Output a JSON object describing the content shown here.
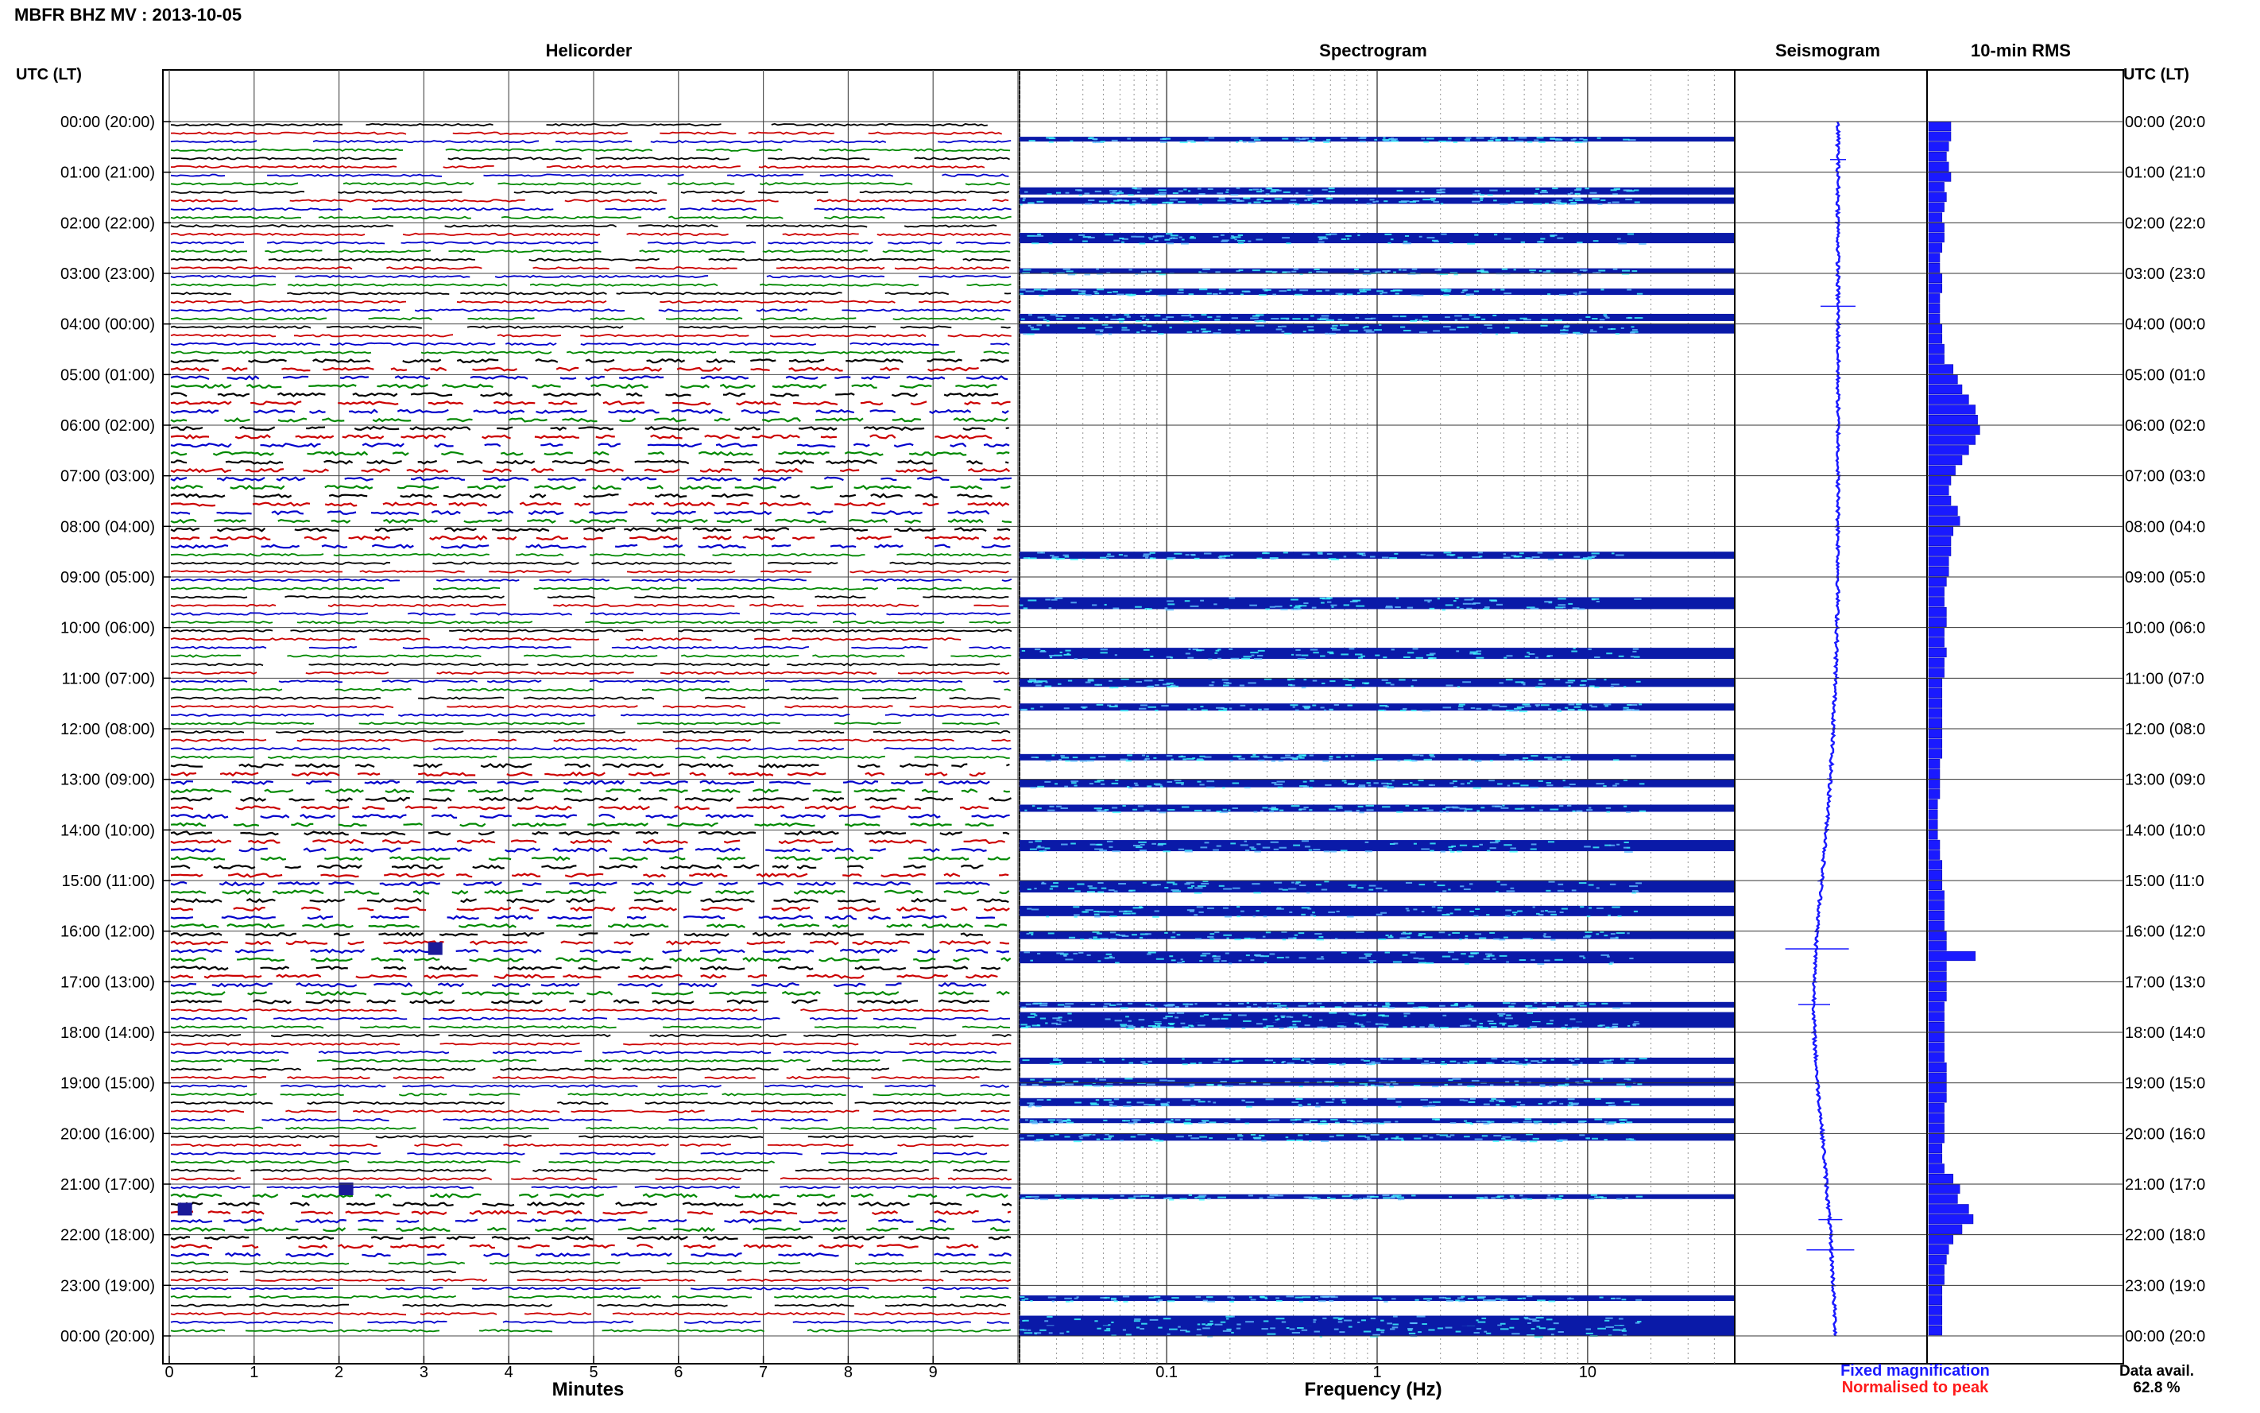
{
  "header": {
    "title": "MBFR BHZ MV : 2013-10-05",
    "time_label_left": "UTC (LT)",
    "time_label_right": "UTC (LT)"
  },
  "panels": {
    "helicorder": "Helicorder",
    "spectrogram": "Spectrogram",
    "seismogram": "Seismogram",
    "rms": "10-min RMS"
  },
  "axes": {
    "helicorder_xlabel": "Minutes",
    "helicorder_ticks": [
      "0",
      "1",
      "2",
      "3",
      "4",
      "5",
      "6",
      "7",
      "8",
      "9"
    ],
    "spectrogram_xlabel": "Frequency (Hz)",
    "spectrogram_ticks": [
      "0.1",
      "1",
      "10"
    ],
    "hour_labels": [
      "00:00 (20:00)",
      "01:00 (21:00)",
      "02:00 (22:00)",
      "03:00 (23:00)",
      "04:00 (00:00)",
      "05:00 (01:00)",
      "06:00 (02:00)",
      "07:00 (03:00)",
      "08:00 (04:00)",
      "09:00 (05:00)",
      "10:00 (06:00)",
      "11:00 (07:00)",
      "12:00 (08:00)",
      "13:00 (09:00)",
      "14:00 (10:00)",
      "15:00 (11:00)",
      "16:00 (12:00)",
      "17:00 (13:00)",
      "18:00 (14:00)",
      "19:00 (15:00)",
      "20:00 (16:00)",
      "21:00 (17:00)",
      "22:00 (18:00)",
      "23:00 (19:00)",
      "00:00 (20:00)"
    ],
    "hour_labels_right": [
      "00:00 (20:0",
      "01:00 (21:0",
      "02:00 (22:0",
      "03:00 (23:0",
      "04:00 (00:0",
      "05:00 (01:0",
      "06:00 (02:0",
      "07:00 (03:0",
      "08:00 (04:0",
      "09:00 (05:0",
      "10:00 (06:0",
      "11:00 (07:0",
      "12:00 (08:0",
      "13:00 (09:0",
      "14:00 (10:0",
      "15:00 (11:0",
      "16:00 (12:0",
      "17:00 (13:0",
      "18:00 (14:0",
      "19:00 (15:0",
      "20:00 (16:0",
      "21:00 (17:0",
      "22:00 (18:0",
      "23:00 (19:0",
      "00:00 (20:0"
    ]
  },
  "legend": {
    "fixed": "Fixed magnification",
    "normalised": "Normalised to peak",
    "fixed_color": "#1a1aff",
    "normalised_color": "#ff1a1a"
  },
  "footer": {
    "data_avail_label": "Data avail.",
    "data_avail_value": "62.8 %"
  },
  "colors": {
    "trace": [
      "#000000",
      "#cc0000",
      "#0000cc",
      "#008800"
    ],
    "spectrogram_low": "#0a1aa8",
    "spectrogram_high": "#40ffff",
    "rms_bar": "#1a1aff",
    "seismogram": "#1a1aff"
  },
  "chart_data": [
    {
      "type": "line",
      "title": "Helicorder",
      "xlabel": "Minutes",
      "xlim": [
        0,
        10
      ],
      "ylim": [
        "00:00",
        "24:00"
      ],
      "rows_per_hour": 6,
      "trace_colors_cycle": [
        "black",
        "red",
        "blue",
        "green"
      ]
    },
    {
      "type": "heatmap",
      "title": "Spectrogram",
      "xlabel": "Frequency (Hz)",
      "x_scale": "log",
      "xlim": [
        0.02,
        50
      ],
      "hours": [
        0.3,
        1.3,
        1.5,
        2.2,
        2.9,
        3.3,
        3.8,
        4.0,
        8.5,
        9.4,
        10.4,
        11.0,
        11.5,
        12.5,
        13.0,
        13.5,
        14.2,
        15.0,
        15.5,
        16.0,
        16.4,
        17.4,
        17.6,
        17.8,
        18.5,
        18.9,
        19.3,
        19.7,
        20.0,
        21.2,
        23.2,
        23.6,
        23.8
      ]
    },
    {
      "type": "line",
      "title": "Seismogram",
      "description_hours": [
        0,
        1,
        2,
        3,
        4,
        5,
        6,
        7,
        8,
        9,
        10,
        11,
        12,
        13,
        14,
        15,
        16,
        17,
        18,
        19,
        20,
        21,
        22,
        23,
        24
      ],
      "offset": [
        0,
        0,
        0,
        0,
        0,
        0,
        0,
        0,
        0,
        0,
        -0.2,
        -0.5,
        -1,
        -1.6,
        -2.4,
        -3.4,
        -4.4,
        -5,
        -5,
        -4.3,
        -3.3,
        -2.4,
        -1.6,
        -1,
        -0.5
      ]
    },
    {
      "type": "bar",
      "title": "10-min RMS",
      "hours": [
        0.0,
        0.2,
        0.4,
        0.6,
        0.8,
        1.0,
        1.2,
        1.4,
        1.6,
        1.8,
        2.0,
        2.2,
        2.4,
        2.6,
        2.8,
        3.0,
        3.2,
        3.4,
        3.6,
        3.8,
        4.0,
        4.2,
        4.4,
        4.6,
        4.8,
        5.0,
        5.2,
        5.4,
        5.6,
        5.8,
        6.0,
        6.2,
        6.4,
        6.6,
        6.8,
        7.0,
        7.2,
        7.4,
        7.6,
        7.8,
        8.0,
        8.2,
        8.4,
        8.6,
        8.8,
        9.0,
        9.2,
        9.4,
        9.6,
        9.8,
        10.0,
        10.2,
        10.4,
        10.6,
        10.8,
        11.0,
        11.2,
        11.4,
        11.6,
        11.8,
        12.0,
        12.2,
        12.4,
        12.6,
        12.8,
        13.0,
        13.2,
        13.4,
        13.6,
        13.8,
        14.0,
        14.2,
        14.4,
        14.6,
        14.8,
        15.0,
        15.2,
        15.4,
        15.6,
        15.8,
        16.0,
        16.2,
        16.4,
        16.6,
        16.8,
        17.0,
        17.2,
        17.4,
        17.6,
        17.8,
        18.0,
        18.2,
        18.4,
        18.6,
        18.8,
        19.0,
        19.2,
        19.4,
        19.6,
        19.8,
        20.0,
        20.2,
        20.4,
        20.6,
        20.8,
        21.0,
        21.2,
        21.4,
        21.6,
        21.8,
        22.0,
        22.2,
        22.4,
        22.6,
        22.8,
        23.0,
        23.2,
        23.4,
        23.6,
        23.8
      ],
      "values": [
        1.0,
        1.0,
        0.9,
        0.8,
        0.9,
        1.0,
        0.7,
        0.8,
        0.7,
        0.6,
        0.7,
        0.7,
        0.6,
        0.5,
        0.5,
        0.6,
        0.6,
        0.5,
        0.5,
        0.5,
        0.6,
        0.6,
        0.7,
        0.7,
        1.1,
        1.3,
        1.5,
        1.8,
        2.1,
        2.2,
        2.3,
        2.1,
        1.8,
        1.5,
        1.2,
        1.0,
        0.9,
        1.0,
        1.3,
        1.4,
        1.1,
        1.0,
        1.0,
        0.9,
        0.9,
        0.8,
        0.7,
        0.7,
        0.8,
        0.8,
        0.7,
        0.7,
        0.8,
        0.7,
        0.7,
        0.6,
        0.6,
        0.6,
        0.6,
        0.6,
        0.6,
        0.6,
        0.6,
        0.5,
        0.5,
        0.5,
        0.5,
        0.4,
        0.4,
        0.4,
        0.4,
        0.5,
        0.5,
        0.6,
        0.6,
        0.6,
        0.7,
        0.7,
        0.7,
        0.7,
        0.8,
        0.8,
        2.1,
        0.8,
        0.8,
        0.8,
        0.8,
        0.7,
        0.7,
        0.7,
        0.7,
        0.7,
        0.7,
        0.8,
        0.8,
        0.8,
        0.8,
        0.7,
        0.7,
        0.7,
        0.7,
        0.6,
        0.6,
        0.7,
        1.1,
        1.4,
        1.3,
        1.8,
        2.0,
        1.5,
        1.1,
        0.9,
        0.8,
        0.7,
        0.7,
        0.6,
        0.6,
        0.6,
        0.6,
        0.6
      ]
    }
  ]
}
